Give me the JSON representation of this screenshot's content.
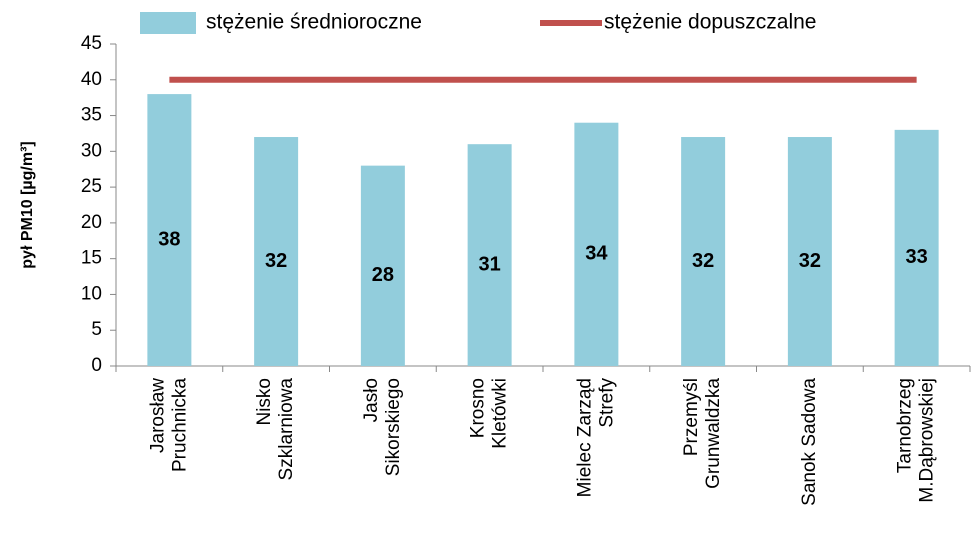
{
  "chart_data": {
    "type": "bar",
    "ylabel": "pył PM10 [µg/m³]",
    "categories": [
      [
        "Jarosław",
        "Pruchnicka"
      ],
      [
        "Nisko",
        "Szklarniowa"
      ],
      [
        "Jasło",
        "Sikorskiego"
      ],
      [
        "Krosno",
        "Kletówki"
      ],
      [
        "Mielec Zarząd",
        "Strefy"
      ],
      [
        "Przemyśl",
        "Grunwaldzka"
      ],
      [
        "Sanok Sadowa"
      ],
      [
        "Tarnobrzeg",
        "M.Dąbrowskiej"
      ]
    ],
    "series": [
      {
        "name": "stężenie średnioroczne",
        "type": "bar",
        "color": "#92cddc",
        "values": [
          38,
          32,
          28,
          31,
          34,
          32,
          32,
          33
        ]
      },
      {
        "name": "stężenie dopuszczalne",
        "type": "line",
        "color": "#c0504d",
        "values": [
          40,
          40,
          40,
          40,
          40,
          40,
          40,
          40
        ]
      }
    ],
    "ylim": [
      0,
      45
    ],
    "yticks": [
      0,
      5,
      10,
      15,
      20,
      25,
      30,
      35,
      40,
      45
    ],
    "grid": false
  }
}
